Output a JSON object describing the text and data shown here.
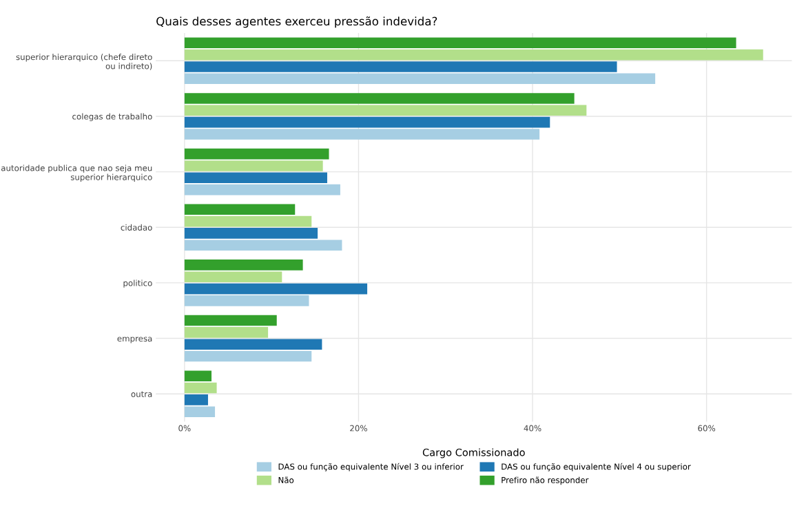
{
  "chart_data": {
    "type": "bar",
    "orientation": "horizontal",
    "title": "Quais desses agentes exerceu pressão indevida?",
    "categories": [
      "superior hierarquico (chefe direto\nou indireto)",
      "colegas de trabalho",
      "autoridade publica que nao seja meu\nsuperior hierarquico",
      "cidadao",
      "politico",
      "empresa",
      "outra"
    ],
    "series": [
      {
        "name": "DAS ou função equivalente Nível 3 ou inferior",
        "color": "#a6cee3",
        "values": [
          54.1,
          40.8,
          17.9,
          18.1,
          14.3,
          14.6,
          3.5
        ]
      },
      {
        "name": "DAS ou função equivalente Nível 4 ou superior",
        "color": "#1f78b4",
        "values": [
          49.7,
          42.0,
          16.4,
          15.3,
          21.0,
          15.8,
          2.7
        ]
      },
      {
        "name": "Não",
        "color": "#b2df8a",
        "values": [
          66.5,
          46.2,
          15.9,
          14.6,
          11.2,
          9.6,
          3.7
        ]
      },
      {
        "name": "Prefiro não responder",
        "color": "#33a02c",
        "values": [
          63.4,
          44.8,
          16.6,
          12.7,
          13.6,
          10.6,
          3.1
        ]
      }
    ],
    "xlim": [
      -3.3,
      69.8
    ],
    "xticks": [
      {
        "value": 0,
        "label": "0%"
      },
      {
        "value": 20,
        "label": "20%"
      },
      {
        "value": 40,
        "label": "40%"
      },
      {
        "value": 60,
        "label": "60%"
      }
    ],
    "legend_title": "Cargo Comissionado",
    "legend": "bottom",
    "grid": true
  }
}
